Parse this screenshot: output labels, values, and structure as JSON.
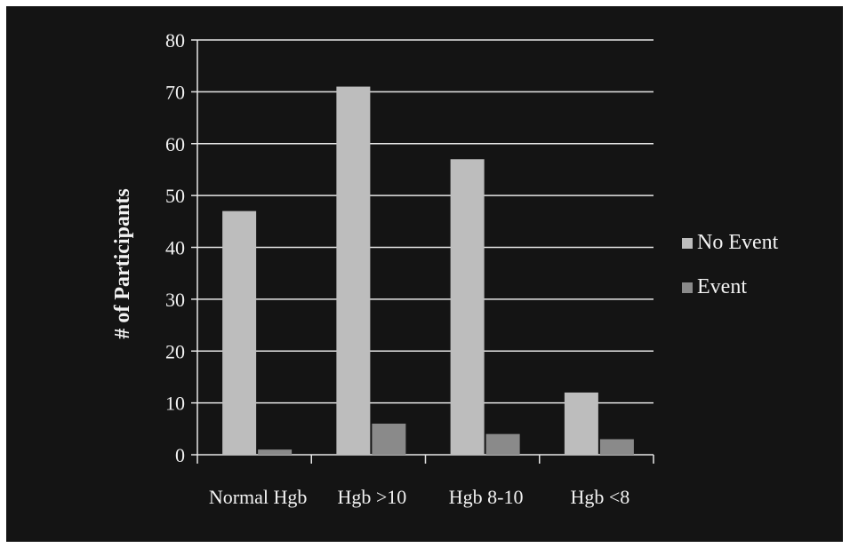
{
  "chart_data": {
    "type": "bar",
    "title": "",
    "xlabel": "",
    "ylabel": "# of Participants",
    "categories": [
      "Normal Hgb",
      "Hgb >10",
      "Hgb 8-10",
      "Hgb <8"
    ],
    "series": [
      {
        "name": "No Event",
        "values": [
          47,
          71,
          57,
          12
        ],
        "color": "#bdbdbd"
      },
      {
        "name": "Event",
        "values": [
          1,
          6,
          4,
          3
        ],
        "color": "#8a8a8a"
      }
    ],
    "ylim": [
      0,
      80
    ],
    "yticks": [
      0,
      10,
      20,
      30,
      40,
      50,
      60,
      70,
      80
    ],
    "grid": true,
    "legend_position": "right",
    "colors": {
      "background": "#141414",
      "text": "#f2f2f2",
      "grid": "#e6e6e6"
    }
  }
}
